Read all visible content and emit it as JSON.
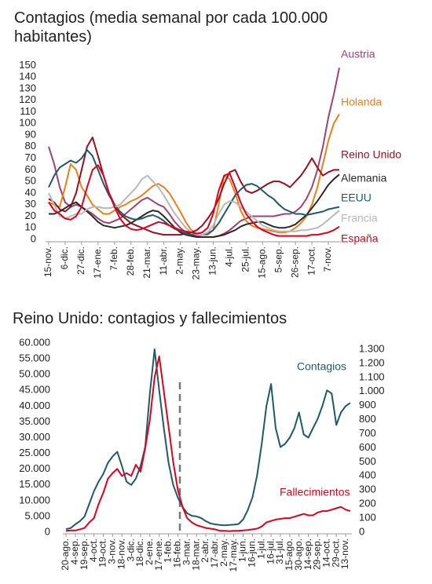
{
  "chart_data": [
    {
      "type": "line",
      "title": "Contagios (media semanal por cada 100.000 habitantes)",
      "categories": [
        "15-nov.",
        null,
        null,
        "6-dic.",
        null,
        null,
        "27-dic.",
        null,
        null,
        "17-ene.",
        null,
        null,
        "7-feb.",
        null,
        null,
        "28-feb.",
        null,
        null,
        "21-mar.",
        null,
        null,
        "11-abr.",
        null,
        null,
        "2-may.",
        null,
        null,
        "23-may.",
        null,
        null,
        "13-jun.",
        null,
        null,
        "4-jul.",
        null,
        null,
        "25-jul.",
        null,
        null,
        "15-ago.",
        null,
        null,
        "5-sep.",
        null,
        null,
        "26-sep.",
        null,
        null,
        "17-oct.",
        null,
        null,
        "7-nov.",
        null,
        null
      ],
      "ylim": [
        0,
        155
      ],
      "yticks": [
        0,
        10,
        20,
        30,
        40,
        50,
        60,
        70,
        80,
        90,
        100,
        110,
        120,
        130,
        140,
        150
      ],
      "series": [
        {
          "name": "Austria",
          "color": "#a3426f",
          "values": [
            80,
            65,
            45,
            32,
            28,
            30,
            28,
            25,
            22,
            18,
            15,
            14,
            16,
            18,
            22,
            26,
            30,
            34,
            36,
            33,
            30,
            28,
            22,
            15,
            10,
            6,
            4,
            3,
            2,
            2,
            2,
            3,
            5,
            8,
            12,
            16,
            18,
            20,
            20,
            20,
            20,
            20,
            21,
            22,
            22,
            24,
            28,
            35,
            45,
            60,
            80,
            105,
            125,
            148
          ]
        },
        {
          "name": "Holanda",
          "color": "#f07d1a",
          "values": [
            32,
            30,
            28,
            45,
            65,
            60,
            45,
            38,
            30,
            26,
            22,
            22,
            25,
            28,
            30,
            33,
            35,
            38,
            42,
            46,
            48,
            45,
            40,
            32,
            24,
            15,
            8,
            5,
            4,
            4,
            8,
            30,
            55,
            52,
            40,
            25,
            16,
            12,
            10,
            9,
            8,
            7,
            6,
            6,
            7,
            10,
            14,
            20,
            30,
            45,
            65,
            85,
            100,
            108
          ]
        },
        {
          "name": "Reino Unido",
          "color": "#9b0f1e",
          "values": [
            35,
            32,
            26,
            24,
            28,
            40,
            60,
            80,
            88,
            72,
            55,
            40,
            30,
            22,
            18,
            14,
            12,
            10,
            8,
            6,
            5,
            4,
            4,
            4,
            4,
            5,
            6,
            8,
            12,
            18,
            25,
            35,
            48,
            58,
            60,
            50,
            42,
            40,
            42,
            45,
            48,
            50,
            50,
            48,
            45,
            50,
            55,
            62,
            70,
            62,
            55,
            58,
            60,
            60
          ]
        },
        {
          "name": "Alemania",
          "color": "#2a2a2a",
          "values": [
            22,
            22,
            24,
            27,
            30,
            32,
            28,
            24,
            20,
            15,
            12,
            11,
            10,
            11,
            12,
            14,
            17,
            20,
            23,
            25,
            24,
            20,
            15,
            10,
            6,
            4,
            3,
            2,
            2,
            2,
            2,
            3,
            4,
            6,
            8,
            11,
            13,
            14,
            15,
            15,
            13,
            11,
            10,
            10,
            11,
            13,
            17,
            21,
            27,
            33,
            40,
            47,
            52,
            56
          ]
        },
        {
          "name": "EEUU",
          "color": "#1e5a6a",
          "values": [
            45,
            55,
            62,
            65,
            68,
            66,
            70,
            77,
            72,
            60,
            48,
            38,
            30,
            24,
            20,
            18,
            17,
            18,
            20,
            21,
            19,
            16,
            12,
            9,
            7,
            5,
            4,
            4,
            4,
            5,
            8,
            14,
            22,
            30,
            38,
            43,
            47,
            48,
            46,
            42,
            38,
            35,
            30,
            26,
            24,
            22,
            22,
            21,
            22,
            23,
            24,
            26,
            27,
            28
          ]
        },
        {
          "name": "Francia",
          "color": "#b8b8b8",
          "values": [
            40,
            30,
            20,
            18,
            20,
            22,
            22,
            26,
            28,
            28,
            27,
            27,
            28,
            30,
            35,
            40,
            45,
            52,
            55,
            50,
            45,
            38,
            30,
            22,
            16,
            10,
            6,
            4,
            4,
            6,
            12,
            22,
            30,
            33,
            32,
            28,
            24,
            20,
            16,
            12,
            10,
            8,
            7,
            7,
            7,
            7,
            8,
            8,
            9,
            10,
            13,
            17,
            21,
            25
          ]
        },
        {
          "name": "España",
          "color": "#e3001b",
          "values": [
            32,
            25,
            22,
            18,
            17,
            20,
            28,
            45,
            60,
            64,
            55,
            40,
            28,
            18,
            12,
            9,
            8,
            9,
            11,
            13,
            15,
            14,
            12,
            10,
            8,
            7,
            6,
            5,
            6,
            10,
            22,
            42,
            55,
            57,
            45,
            32,
            22,
            16,
            11,
            8,
            6,
            4,
            3,
            3,
            3,
            3,
            3,
            3,
            4,
            4,
            5,
            6,
            8,
            11
          ]
        }
      ]
    },
    {
      "type": "line",
      "title": "Reino Unido: contagios y fallecimientos",
      "categories": [
        "20-ago.",
        null,
        "4-sep.",
        null,
        "19-sep.",
        null,
        "4-oct.",
        null,
        "19-oct.",
        null,
        "3-nov.",
        null,
        "18-nov.",
        null,
        "3-dic.",
        null,
        "18-dic.",
        null,
        "2-ene.",
        null,
        "17-ene.",
        null,
        "1-feb.",
        null,
        "16-feb.",
        null,
        "3-mar.",
        null,
        "18-mar.",
        null,
        "2-abr.",
        null,
        "17-abr.",
        null,
        "2-may.",
        null,
        "17-may.",
        null,
        "1-jun.",
        null,
        "16-jun.",
        null,
        "1-jul.",
        null,
        "16-jul.",
        null,
        "31-jul.",
        null,
        "15-ago.",
        null,
        "30-ago.",
        null,
        "14-sep.",
        null,
        "29-sep.",
        null,
        "14-oct.",
        null,
        "29-oct.",
        null,
        "13-nov.",
        null
      ],
      "ylim": [
        0,
        60000
      ],
      "yticks": [
        0,
        {
          "value": 5000,
          "label": "5.000"
        },
        {
          "value": 10000,
          "label": "10.000"
        },
        {
          "value": 15000,
          "label": "15.000"
        },
        {
          "value": 20000,
          "label": "20.000"
        },
        {
          "value": 25000,
          "label": "25.000"
        },
        {
          "value": 30000,
          "label": "30.000"
        },
        {
          "value": 35000,
          "label": "35.000"
        },
        {
          "value": 40000,
          "label": "40.000"
        },
        {
          "value": 45000,
          "label": "45.000"
        },
        {
          "value": 50000,
          "label": "50.000"
        },
        {
          "value": 55000,
          "label": "55.000"
        },
        {
          "value": 60000,
          "label": "60.000"
        }
      ],
      "y2lim": [
        0,
        1300
      ],
      "y2ticks": [
        0,
        100,
        200,
        300,
        400,
        500,
        600,
        700,
        800,
        900,
        {
          "value": 1000,
          "label": "1.000"
        },
        {
          "value": 1100,
          "label": "1.100"
        },
        {
          "value": 1200,
          "label": "1.200"
        },
        {
          "value": 1300,
          "label": "1.300"
        }
      ],
      "series": [
        {
          "name": "Contagios",
          "color": "#1e5a6a",
          "values": [
            1000,
            1300,
            2500,
            3500,
            5000,
            9000,
            13000,
            16000,
            18500,
            22000,
            24000,
            25500,
            21000,
            16000,
            15000,
            17000,
            21000,
            27000,
            44000,
            58000,
            45000,
            33000,
            22000,
            15000,
            11000,
            8000,
            6000,
            5200,
            5000,
            4500,
            3500,
            2800,
            2500,
            2300,
            2200,
            2300,
            2400,
            2600,
            4000,
            7000,
            11000,
            18000,
            28000,
            40000,
            47000,
            33000,
            27000,
            28000,
            30000,
            33000,
            38000,
            31000,
            30000,
            33000,
            36000,
            40000,
            45000,
            44000,
            34000,
            38000,
            40000,
            41000
          ]
        },
        {
          "name": "Fallecimientos",
          "color": "#e3001b",
          "axis": "y2",
          "values": [
            10,
            12,
            12,
            20,
            30,
            70,
            100,
            200,
            280,
            380,
            420,
            450,
            400,
            420,
            400,
            480,
            430,
            600,
            800,
            1100,
            1250,
            1000,
            750,
            500,
            300,
            180,
            100,
            70,
            50,
            40,
            30,
            25,
            20,
            10,
            10,
            8,
            10,
            10,
            12,
            15,
            20,
            25,
            40,
            70,
            80,
            90,
            95,
            100,
            100,
            110,
            120,
            130,
            120,
            120,
            140,
            150,
            150,
            160,
            170,
            180,
            160,
            150
          ]
        }
      ]
    }
  ]
}
